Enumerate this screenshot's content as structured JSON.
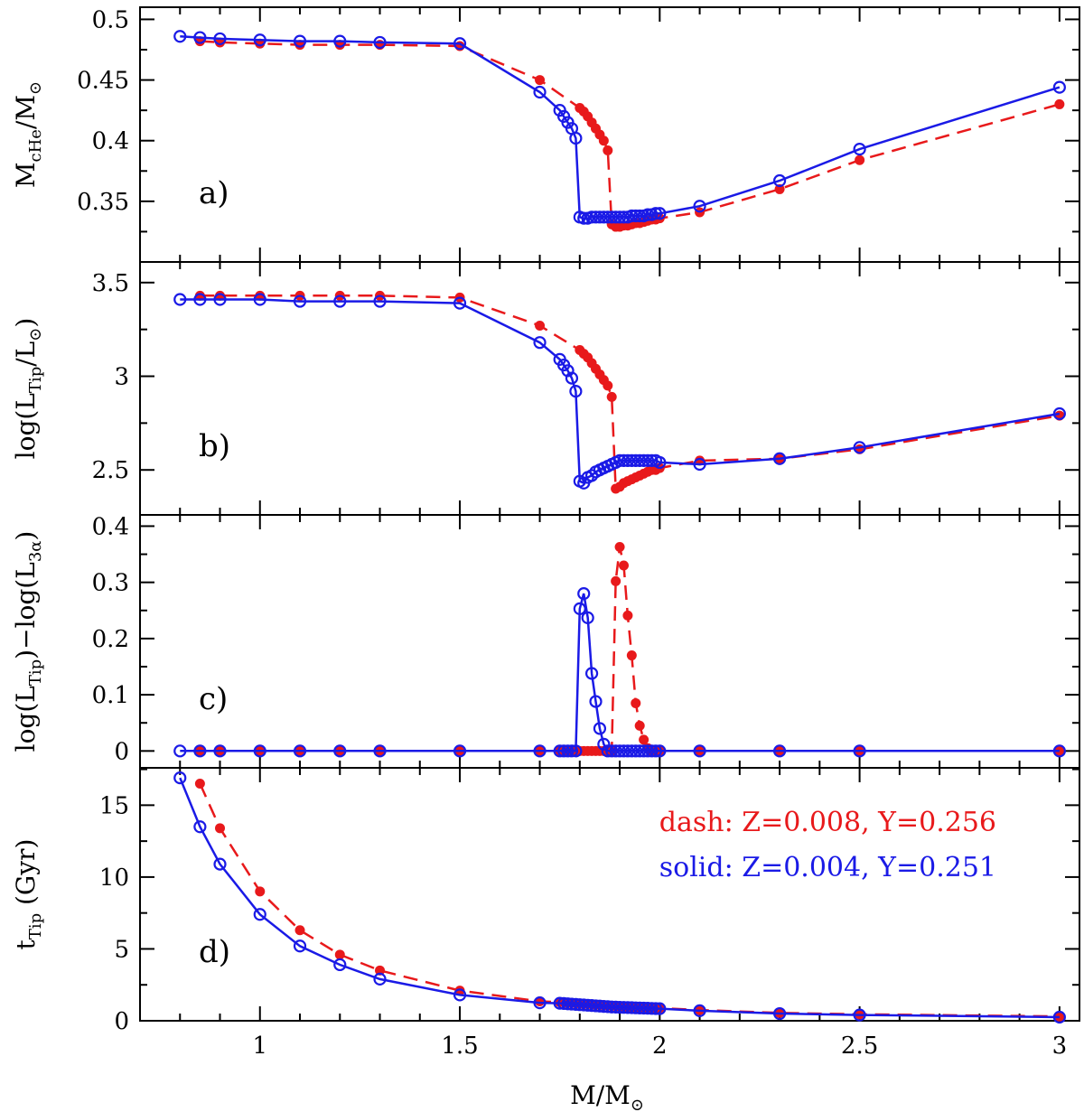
{
  "figure": {
    "xlabel_main": "M/M",
    "xlabel_sub": "⊙",
    "x_ticks": [
      1,
      1.5,
      2,
      2.5,
      3
    ],
    "x_tick_labels": [
      "1",
      "1.5",
      "2",
      "2.5",
      "3"
    ],
    "xlim": [
      0.7,
      3.05
    ]
  },
  "colors": {
    "dash": "#e8191b",
    "solid": "#1a1ae6"
  },
  "legend": {
    "dash_label": "dash: Z=0.008, Y=0.256",
    "solid_label": "solid: Z=0.004, Y=0.251"
  },
  "chart_data": [
    {
      "type": "line",
      "panel_tag": "a)",
      "ylabel": {
        "pre": "M",
        "sub": "cHe",
        "mid": "/M",
        "sub2": "⊙",
        "post": ""
      },
      "ylim": [
        0.3,
        0.51
      ],
      "y_ticks": [
        0.35,
        0.4,
        0.45,
        0.5
      ],
      "y_tick_labels": [
        "0.35",
        "0.4",
        "0.45",
        "0.5"
      ],
      "series": [
        {
          "name": "dash: Z=0.008, Y=0.256",
          "x": [
            0.85,
            0.9,
            1.0,
            1.1,
            1.2,
            1.3,
            1.5,
            1.7,
            1.8,
            1.81,
            1.82,
            1.83,
            1.84,
            1.85,
            1.86,
            1.87,
            1.88,
            1.89,
            1.9,
            1.91,
            1.92,
            1.93,
            1.94,
            1.95,
            1.96,
            1.97,
            1.98,
            1.99,
            2.0,
            2.1,
            2.3,
            2.5,
            3.0
          ],
          "y": [
            0.482,
            0.481,
            0.48,
            0.479,
            0.479,
            0.479,
            0.478,
            0.45,
            0.427,
            0.424,
            0.42,
            0.415,
            0.41,
            0.405,
            0.4,
            0.392,
            0.331,
            0.329,
            0.329,
            0.33,
            0.33,
            0.331,
            0.332,
            0.332,
            0.333,
            0.334,
            0.335,
            0.335,
            0.336,
            0.341,
            0.36,
            0.384,
            0.43
          ]
        },
        {
          "name": "solid: Z=0.004, Y=0.251",
          "x": [
            0.8,
            0.85,
            0.9,
            1.0,
            1.1,
            1.2,
            1.3,
            1.5,
            1.7,
            1.75,
            1.76,
            1.77,
            1.78,
            1.79,
            1.8,
            1.81,
            1.82,
            1.83,
            1.84,
            1.85,
            1.86,
            1.87,
            1.88,
            1.89,
            1.9,
            1.91,
            1.92,
            1.93,
            1.94,
            1.95,
            1.96,
            1.97,
            1.98,
            1.99,
            2.0,
            2.1,
            2.3,
            2.5,
            3.0
          ],
          "y": [
            0.486,
            0.485,
            0.484,
            0.483,
            0.482,
            0.482,
            0.481,
            0.48,
            0.44,
            0.425,
            0.42,
            0.415,
            0.41,
            0.402,
            0.337,
            0.336,
            0.336,
            0.337,
            0.337,
            0.337,
            0.337,
            0.337,
            0.337,
            0.337,
            0.337,
            0.337,
            0.337,
            0.338,
            0.338,
            0.338,
            0.338,
            0.339,
            0.339,
            0.34,
            0.34,
            0.346,
            0.367,
            0.393,
            0.444
          ]
        }
      ]
    },
    {
      "type": "line",
      "panel_tag": "b)",
      "ylabel": {
        "pre": "log(L",
        "sub": "Tip",
        "mid": "/L",
        "sub2": "⊙",
        "post": ")"
      },
      "ylim": [
        2.26,
        3.61
      ],
      "y_ticks": [
        2.5,
        3,
        3.5
      ],
      "y_tick_labels": [
        "2.5",
        "3",
        "3.5"
      ],
      "series": [
        {
          "name": "dash: Z=0.008, Y=0.256",
          "x": [
            0.85,
            0.9,
            1.0,
            1.1,
            1.2,
            1.3,
            1.5,
            1.7,
            1.8,
            1.81,
            1.82,
            1.83,
            1.84,
            1.85,
            1.86,
            1.87,
            1.88,
            1.89,
            1.9,
            1.91,
            1.92,
            1.93,
            1.94,
            1.95,
            1.96,
            1.97,
            1.98,
            1.99,
            2.0,
            2.1,
            2.3,
            2.5,
            3.0
          ],
          "y": [
            3.43,
            3.43,
            3.43,
            3.43,
            3.43,
            3.43,
            3.42,
            3.27,
            3.14,
            3.12,
            3.1,
            3.07,
            3.04,
            3.01,
            2.98,
            2.95,
            2.89,
            2.4,
            2.41,
            2.43,
            2.44,
            2.45,
            2.46,
            2.47,
            2.48,
            2.49,
            2.5,
            2.5,
            2.51,
            2.55,
            2.56,
            2.61,
            2.79
          ]
        },
        {
          "name": "solid: Z=0.004, Y=0.251",
          "x": [
            0.8,
            0.85,
            0.9,
            1.0,
            1.1,
            1.2,
            1.3,
            1.5,
            1.7,
            1.75,
            1.76,
            1.77,
            1.78,
            1.79,
            1.8,
            1.81,
            1.82,
            1.83,
            1.84,
            1.85,
            1.86,
            1.87,
            1.88,
            1.89,
            1.9,
            1.91,
            1.92,
            1.93,
            1.94,
            1.95,
            1.96,
            1.97,
            1.98,
            1.99,
            2.0,
            2.1,
            2.3,
            2.5,
            3.0
          ],
          "y": [
            3.41,
            3.41,
            3.41,
            3.41,
            3.4,
            3.4,
            3.4,
            3.39,
            3.18,
            3.09,
            3.06,
            3.03,
            2.99,
            2.92,
            2.44,
            2.43,
            2.46,
            2.47,
            2.49,
            2.5,
            2.51,
            2.52,
            2.53,
            2.54,
            2.55,
            2.55,
            2.55,
            2.55,
            2.55,
            2.55,
            2.55,
            2.55,
            2.55,
            2.55,
            2.54,
            2.53,
            2.56,
            2.62,
            2.8
          ]
        }
      ]
    },
    {
      "type": "line",
      "panel_tag": "c)",
      "ylabel": {
        "pre": "log(L",
        "sub": "Tip",
        "mid": ")−log(L",
        "sub2": "3α",
        "post": ")"
      },
      "ylim": [
        -0.03,
        0.42
      ],
      "y_ticks": [
        0,
        0.1,
        0.2,
        0.3,
        0.4
      ],
      "y_tick_labels": [
        "0",
        "0.1",
        "0.2",
        "0.3",
        "0.4"
      ],
      "series": [
        {
          "name": "dash: Z=0.008, Y=0.256",
          "x": [
            0.85,
            0.9,
            1.0,
            1.1,
            1.2,
            1.3,
            1.5,
            1.7,
            1.75,
            1.76,
            1.77,
            1.78,
            1.79,
            1.8,
            1.81,
            1.82,
            1.83,
            1.84,
            1.85,
            1.86,
            1.87,
            1.88,
            1.89,
            1.9,
            1.91,
            1.92,
            1.93,
            1.94,
            1.95,
            1.96,
            1.97,
            1.98,
            1.99,
            2.0,
            2.1,
            2.3,
            2.5,
            3.0
          ],
          "y": [
            0,
            0,
            0,
            0,
            0,
            0,
            0,
            0,
            0,
            0,
            0,
            0,
            0,
            0,
            0,
            0,
            0,
            0,
            0,
            0,
            0,
            0,
            0.302,
            0.363,
            0.33,
            0.241,
            0.17,
            0.085,
            0.045,
            0.02,
            0.005,
            0,
            0,
            0,
            0,
            0,
            0,
            0
          ]
        },
        {
          "name": "solid: Z=0.004, Y=0.251",
          "x": [
            0.8,
            0.85,
            0.9,
            1.0,
            1.1,
            1.2,
            1.3,
            1.5,
            1.7,
            1.75,
            1.76,
            1.77,
            1.78,
            1.79,
            1.8,
            1.81,
            1.82,
            1.83,
            1.84,
            1.85,
            1.86,
            1.87,
            1.88,
            1.89,
            1.9,
            1.91,
            1.92,
            1.93,
            1.94,
            1.95,
            1.96,
            1.97,
            1.98,
            1.99,
            2.0,
            2.1,
            2.3,
            2.5,
            3.0
          ],
          "y": [
            0,
            0,
            0,
            0,
            0,
            0,
            0,
            0,
            0,
            0,
            0,
            0,
            0,
            0,
            0.253,
            0.28,
            0.237,
            0.138,
            0.088,
            0.04,
            0.012,
            0,
            0,
            0,
            0,
            0,
            0,
            0,
            0,
            0,
            0,
            0,
            0,
            0,
            0,
            0,
            0,
            0,
            0
          ]
        }
      ]
    },
    {
      "type": "line",
      "panel_tag": "d)",
      "ylabel": {
        "pre": "t",
        "sub": "Tip",
        "mid": "  (Gyr)",
        "sub2": "",
        "post": ""
      },
      "ylim": [
        0,
        17.6
      ],
      "y_ticks": [
        0,
        5,
        10,
        15
      ],
      "y_tick_labels": [
        "0",
        "5",
        "10",
        "15"
      ],
      "series": [
        {
          "name": "dash: Z=0.008, Y=0.256",
          "x": [
            0.85,
            0.9,
            1.0,
            1.1,
            1.2,
            1.3,
            1.5,
            1.7,
            1.75,
            1.76,
            1.77,
            1.78,
            1.79,
            1.8,
            1.81,
            1.82,
            1.83,
            1.84,
            1.85,
            1.86,
            1.87,
            1.88,
            1.89,
            1.9,
            1.91,
            1.92,
            1.93,
            1.94,
            1.95,
            1.96,
            1.97,
            1.98,
            1.99,
            2.0,
            2.1,
            2.3,
            2.5,
            3.0
          ],
          "y": [
            16.5,
            13.4,
            9.0,
            6.3,
            4.6,
            3.5,
            2.1,
            1.35,
            1.3,
            1.28,
            1.26,
            1.24,
            1.22,
            1.2,
            1.18,
            1.16,
            1.14,
            1.12,
            1.1,
            1.08,
            1.06,
            1.04,
            1.02,
            1.0,
            0.98,
            0.96,
            0.95,
            0.94,
            0.93,
            0.92,
            0.91,
            0.9,
            0.89,
            0.88,
            0.75,
            0.55,
            0.45,
            0.3
          ]
        },
        {
          "name": "solid: Z=0.004, Y=0.251",
          "x": [
            0.8,
            0.85,
            0.9,
            1.0,
            1.1,
            1.2,
            1.3,
            1.5,
            1.7,
            1.75,
            1.76,
            1.77,
            1.78,
            1.79,
            1.8,
            1.81,
            1.82,
            1.83,
            1.84,
            1.85,
            1.86,
            1.87,
            1.88,
            1.89,
            1.9,
            1.91,
            1.92,
            1.93,
            1.94,
            1.95,
            1.96,
            1.97,
            1.98,
            1.99,
            2.0,
            2.1,
            2.3,
            2.5,
            3.0
          ],
          "y": [
            16.9,
            13.5,
            10.9,
            7.4,
            5.2,
            3.9,
            2.9,
            1.8,
            1.25,
            1.22,
            1.2,
            1.18,
            1.16,
            1.14,
            1.12,
            1.1,
            1.08,
            1.06,
            1.04,
            1.02,
            1.0,
            0.98,
            0.96,
            0.95,
            0.94,
            0.93,
            0.92,
            0.91,
            0.9,
            0.89,
            0.88,
            0.87,
            0.86,
            0.85,
            0.84,
            0.7,
            0.5,
            0.4,
            0.25
          ]
        }
      ]
    }
  ]
}
